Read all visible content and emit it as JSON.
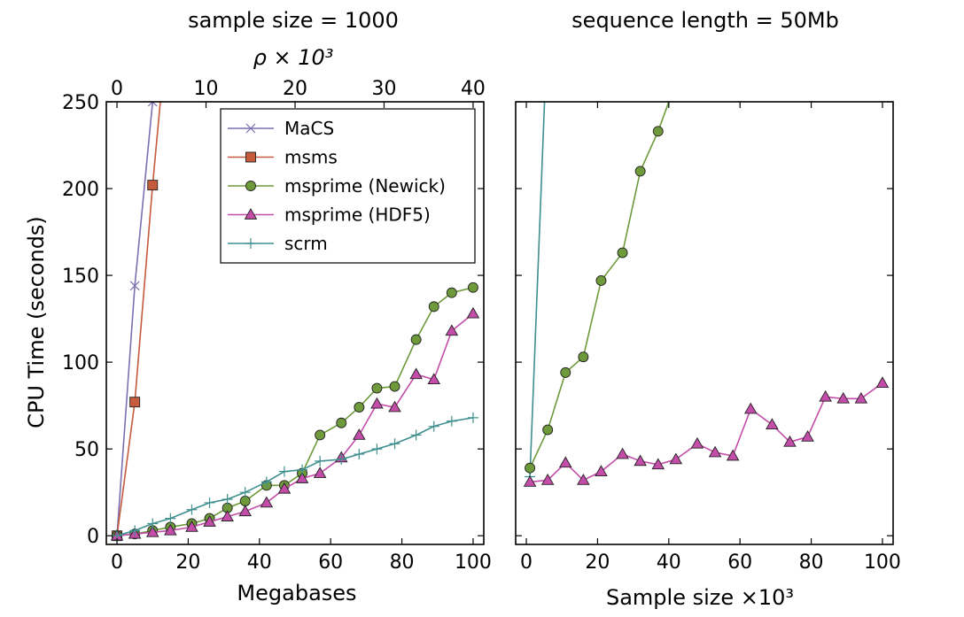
{
  "chart_data": [
    {
      "type": "line",
      "title": "sample size = 1000",
      "top_axis_label": "ρ × 10³",
      "xlabel": "Megabases",
      "ylabel": "CPU Time (seconds)",
      "xlim": [
        -3,
        103
      ],
      "ylim": [
        -5,
        250
      ],
      "top_xlim": [
        -1.2,
        41.2
      ],
      "xticks": [
        0,
        20,
        40,
        60,
        80,
        100
      ],
      "yticks": [
        0,
        50,
        100,
        150,
        200,
        250
      ],
      "top_xticks": [
        0,
        10,
        20,
        30,
        40
      ],
      "legend": "top-right",
      "grid": false,
      "series": [
        {
          "name": "MaCS",
          "color": "#7b6fb1",
          "marker": "x",
          "x": [
            0,
            5,
            10
          ],
          "y": [
            0,
            144,
            250
          ],
          "line_to": [
            10.3,
            255
          ]
        },
        {
          "name": "msms",
          "color": "#c55a3c",
          "marker": "square",
          "x": [
            0,
            5,
            10
          ],
          "y": [
            0,
            77,
            202
          ],
          "line_to": [
            12.4,
            255
          ]
        },
        {
          "name": "msprime (Newick)",
          "color": "#6e9a3c",
          "marker": "circle",
          "x": [
            0,
            5,
            10,
            15,
            21,
            26,
            31,
            36,
            42,
            47,
            52,
            57,
            63,
            68,
            73,
            78,
            84,
            89,
            94,
            100
          ],
          "y": [
            0,
            1,
            3,
            5,
            7,
            10,
            16,
            20,
            29,
            29,
            36,
            58,
            65,
            74,
            85,
            86,
            113,
            132,
            140,
            143
          ]
        },
        {
          "name": "msprime (HDF5)",
          "color": "#c34da8",
          "marker": "triangle",
          "x": [
            0,
            5,
            10,
            15,
            21,
            26,
            31,
            36,
            42,
            47,
            52,
            57,
            63,
            68,
            73,
            78,
            84,
            89,
            94,
            100
          ],
          "y": [
            0,
            1,
            2,
            3,
            5,
            8,
            11,
            14,
            19,
            27,
            33,
            36,
            45,
            58,
            76,
            74,
            93,
            90,
            118,
            128
          ]
        },
        {
          "name": "scrm",
          "color": "#3f8f8f",
          "marker": "plus",
          "x": [
            0,
            5,
            10,
            15,
            21,
            26,
            31,
            36,
            42,
            47,
            52,
            57,
            63,
            68,
            73,
            78,
            84,
            89,
            94,
            100
          ],
          "y": [
            0,
            3,
            7,
            10,
            15,
            19,
            21,
            25,
            31,
            37,
            38,
            43,
            44,
            47,
            50,
            53,
            58,
            63,
            66,
            68
          ]
        }
      ]
    },
    {
      "type": "line",
      "title": "sequence length = 50Mb",
      "xlabel": "Sample size ×10³",
      "ylabel": "",
      "xlim": [
        -3,
        103
      ],
      "ylim": [
        -5,
        250
      ],
      "xticks": [
        0,
        20,
        40,
        60,
        80,
        100
      ],
      "yticks": [
        0,
        50,
        100,
        150,
        200,
        250
      ],
      "grid": false,
      "series": [
        {
          "name": "scrm",
          "color": "#3f8f8f",
          "marker": "plus",
          "x": [
            1
          ],
          "y": [
            34
          ],
          "line_to": [
            5.2,
            255
          ]
        },
        {
          "name": "msprime (Newick)",
          "color": "#6e9a3c",
          "marker": "circle",
          "x": [
            1,
            6,
            11,
            16,
            21,
            27,
            32,
            37
          ],
          "y": [
            39,
            61,
            94,
            103,
            147,
            163,
            210,
            233
          ],
          "line_to": [
            40.9,
            255
          ]
        },
        {
          "name": "msprime (HDF5)",
          "color": "#c34da8",
          "marker": "triangle",
          "x": [
            1,
            6,
            11,
            16,
            21,
            27,
            32,
            37,
            42,
            48,
            53,
            58,
            63,
            69,
            74,
            79,
            84,
            89,
            94,
            100
          ],
          "y": [
            31,
            32,
            42,
            32,
            37,
            47,
            43,
            41,
            44,
            53,
            48,
            46,
            73,
            64,
            54,
            57,
            80,
            79,
            79,
            88
          ]
        }
      ]
    }
  ]
}
